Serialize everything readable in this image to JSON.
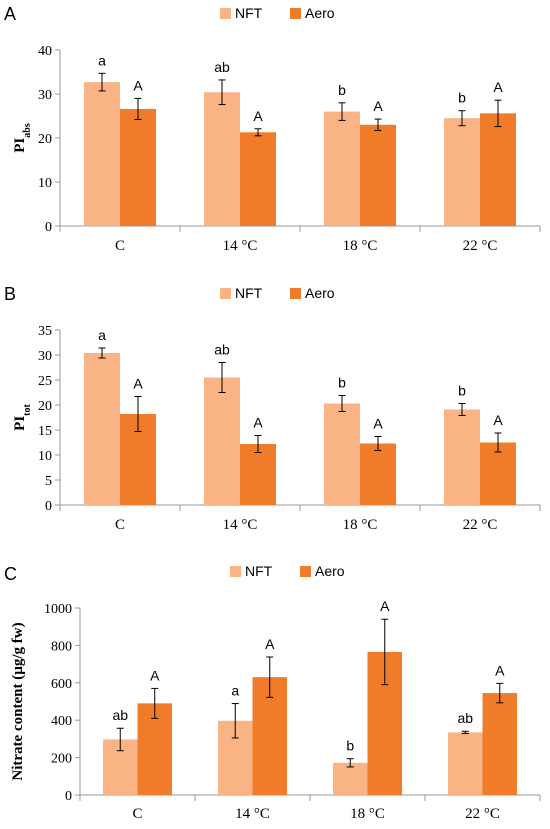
{
  "colors": {
    "NFT": "#F9B384",
    "Aero": "#F07C2A",
    "axis": "#999999",
    "error": "#000000"
  },
  "chart_data": [
    {
      "panel": "A",
      "type": "bar",
      "categories": [
        "C",
        "14 °C",
        "18 °C",
        "22 °C"
      ],
      "ylabel": {
        "main": "PI",
        "sub": "abs"
      },
      "ylim": [
        0,
        40
      ],
      "yticks": [
        0,
        10,
        20,
        30,
        40
      ],
      "legend": "top-center",
      "series": [
        {
          "name": "NFT",
          "values": [
            32.7,
            30.4,
            26.0,
            24.5
          ],
          "errors": [
            2.0,
            2.8,
            2.0,
            1.7
          ],
          "labels": [
            "a",
            "ab",
            "b",
            "b"
          ]
        },
        {
          "name": "Aero",
          "values": [
            26.6,
            21.3,
            23.0,
            25.6
          ],
          "errors": [
            2.4,
            0.8,
            1.3,
            3.0
          ],
          "labels": [
            "A",
            "A",
            "A",
            "A"
          ]
        }
      ]
    },
    {
      "panel": "B",
      "type": "bar",
      "categories": [
        "C",
        "14 °C",
        "18 °C",
        "22 °C"
      ],
      "ylabel": {
        "main": "PI",
        "sub": "tot"
      },
      "ylim": [
        0,
        35
      ],
      "yticks": [
        0,
        5,
        10,
        15,
        20,
        25,
        30,
        35
      ],
      "legend": "top-center",
      "series": [
        {
          "name": "NFT",
          "values": [
            30.4,
            25.5,
            20.3,
            19.1
          ],
          "errors": [
            1.0,
            3.0,
            1.6,
            1.2
          ],
          "labels": [
            "a",
            "ab",
            "b",
            "b"
          ]
        },
        {
          "name": "Aero",
          "values": [
            18.2,
            12.2,
            12.3,
            12.5
          ],
          "errors": [
            3.5,
            1.7,
            1.4,
            1.9
          ],
          "labels": [
            "A",
            "A",
            "A",
            "A"
          ]
        }
      ]
    },
    {
      "panel": "C",
      "type": "bar",
      "categories": [
        "C",
        "14 °C",
        "18 °C",
        "22 °C"
      ],
      "ylabel": {
        "main": "Nitrate content (µg/g fw)",
        "sub": ""
      },
      "ylim": [
        0,
        1000
      ],
      "yticks": [
        0,
        200,
        400,
        600,
        800,
        1000
      ],
      "legend": "top-center",
      "series": [
        {
          "name": "NFT",
          "values": [
            297,
            397,
            172,
            335
          ],
          "errors": [
            60,
            92,
            22,
            6
          ],
          "labels": [
            "ab",
            "a",
            "b",
            "ab"
          ]
        },
        {
          "name": "Aero",
          "values": [
            490,
            630,
            765,
            545
          ],
          "errors": [
            80,
            108,
            175,
            52
          ],
          "labels": [
            "A",
            "A",
            "A",
            "A"
          ]
        }
      ]
    }
  ]
}
